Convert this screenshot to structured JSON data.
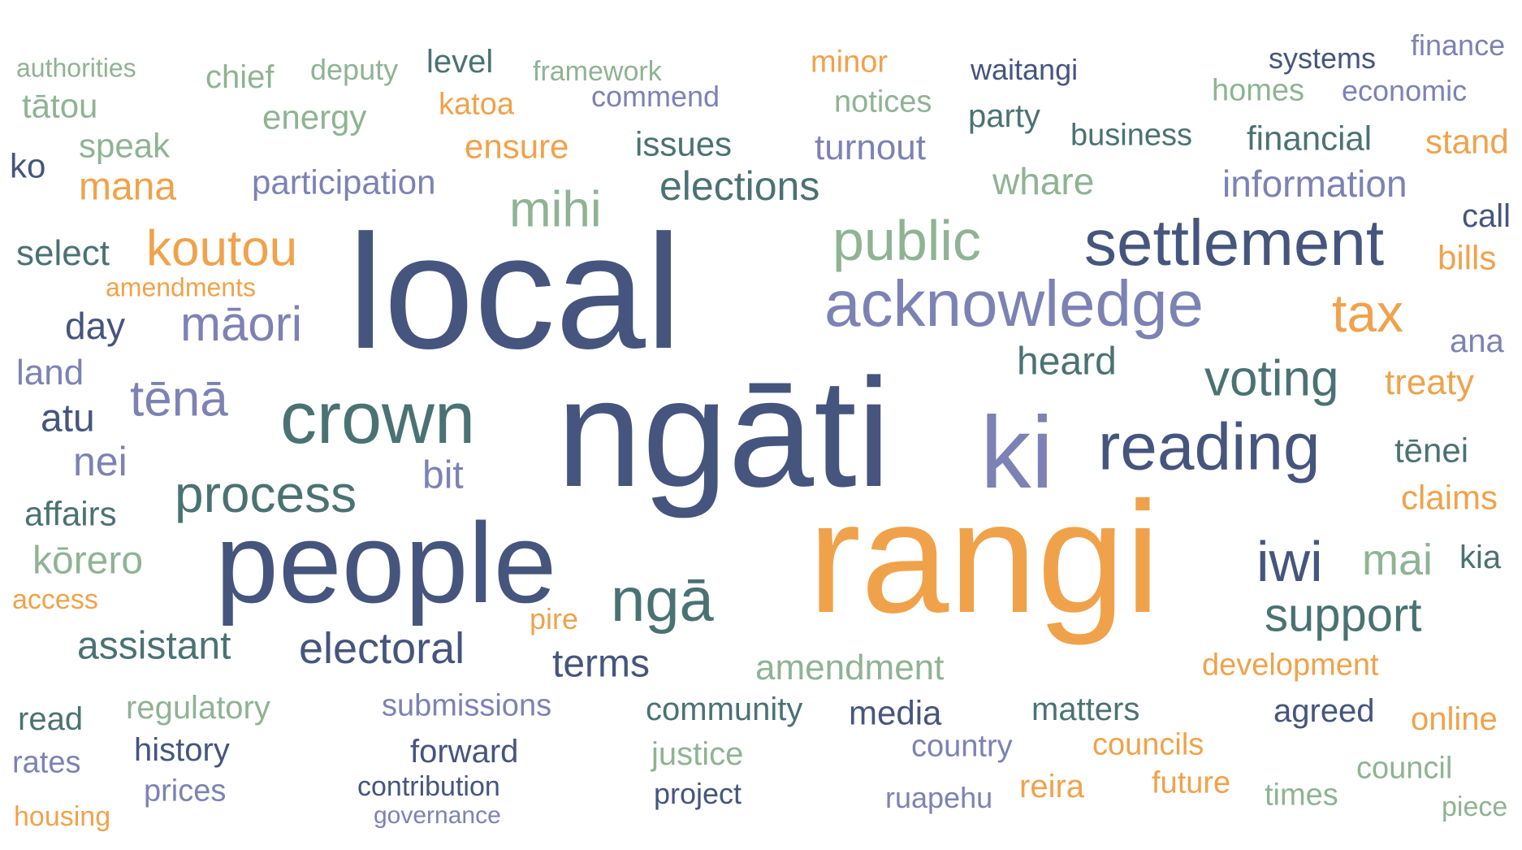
{
  "palette": {
    "navy": "#46557d",
    "teal": "#4b7272",
    "sage": "#8fb394",
    "lavender": "#7d82b4",
    "orange": "#f0a24b"
  },
  "words": [
    {
      "text": "local",
      "color": "navy"
    },
    {
      "text": "ngāti",
      "color": "navy"
    },
    {
      "text": "rangi",
      "color": "orange"
    },
    {
      "text": "people",
      "color": "navy"
    },
    {
      "text": "ki",
      "color": "lavender"
    },
    {
      "text": "crown",
      "color": "teal"
    },
    {
      "text": "settlement",
      "color": "navy"
    },
    {
      "text": "acknowledge",
      "color": "lavender"
    },
    {
      "text": "reading",
      "color": "navy"
    },
    {
      "text": "public",
      "color": "sage"
    },
    {
      "text": "process",
      "color": "teal"
    },
    {
      "text": "ngā",
      "color": "teal"
    },
    {
      "text": "electoral",
      "color": "navy"
    },
    {
      "text": "koutou",
      "color": "orange"
    },
    {
      "text": "māori",
      "color": "lavender"
    },
    {
      "text": "voting",
      "color": "teal"
    },
    {
      "text": "tax",
      "color": "orange"
    },
    {
      "text": "iwi",
      "color": "navy"
    },
    {
      "text": "support",
      "color": "teal"
    },
    {
      "text": "mihi",
      "color": "sage"
    },
    {
      "text": "tēnā",
      "color": "lavender"
    },
    {
      "text": "mai",
      "color": "sage"
    },
    {
      "text": "elections",
      "color": "teal"
    },
    {
      "text": "heard",
      "color": "teal"
    },
    {
      "text": "assistant",
      "color": "teal"
    },
    {
      "text": "amendment",
      "color": "sage"
    },
    {
      "text": "terms",
      "color": "navy"
    },
    {
      "text": "information",
      "color": "lavender"
    },
    {
      "text": "whare",
      "color": "sage"
    },
    {
      "text": "kōrero",
      "color": "sage"
    },
    {
      "text": "nei",
      "color": "lavender"
    },
    {
      "text": "treaty",
      "color": "orange"
    },
    {
      "text": "tēnei",
      "color": "teal"
    },
    {
      "text": "mana",
      "color": "orange"
    },
    {
      "text": "turnout",
      "color": "lavender"
    },
    {
      "text": "participation",
      "color": "lavender"
    },
    {
      "text": "day",
      "color": "navy"
    },
    {
      "text": "select",
      "color": "teal"
    },
    {
      "text": "issues",
      "color": "teal"
    },
    {
      "text": "ensure",
      "color": "orange"
    },
    {
      "text": "financial",
      "color": "teal"
    },
    {
      "text": "business",
      "color": "teal"
    },
    {
      "text": "claims",
      "color": "orange"
    },
    {
      "text": "land",
      "color": "lavender"
    },
    {
      "text": "atu",
      "color": "navy"
    },
    {
      "text": "bit",
      "color": "lavender"
    },
    {
      "text": "affairs",
      "color": "teal"
    },
    {
      "text": "speak",
      "color": "sage"
    },
    {
      "text": "stand",
      "color": "orange"
    },
    {
      "text": "bills",
      "color": "orange"
    },
    {
      "text": "matters",
      "color": "teal"
    },
    {
      "text": "community",
      "color": "teal"
    },
    {
      "text": "media",
      "color": "navy"
    },
    {
      "text": "development",
      "color": "orange"
    },
    {
      "text": "agreed",
      "color": "navy"
    },
    {
      "text": "online",
      "color": "orange"
    },
    {
      "text": "forward",
      "color": "navy"
    },
    {
      "text": "history",
      "color": "navy"
    },
    {
      "text": "regulatory",
      "color": "sage"
    },
    {
      "text": "submissions",
      "color": "lavender"
    },
    {
      "text": "justice",
      "color": "sage"
    },
    {
      "text": "councils",
      "color": "orange"
    },
    {
      "text": "country",
      "color": "lavender"
    },
    {
      "text": "council",
      "color": "sage"
    },
    {
      "text": "read",
      "color": "teal"
    },
    {
      "text": "rates",
      "color": "lavender"
    },
    {
      "text": "future",
      "color": "orange"
    },
    {
      "text": "reira",
      "color": "orange"
    },
    {
      "text": "project",
      "color": "navy"
    },
    {
      "text": "times",
      "color": "sage"
    },
    {
      "text": "prices",
      "color": "lavender"
    },
    {
      "text": "contribution",
      "color": "navy"
    },
    {
      "text": "ruapehu",
      "color": "lavender"
    },
    {
      "text": "housing",
      "color": "orange"
    },
    {
      "text": "governance",
      "color": "lavender"
    },
    {
      "text": "piece",
      "color": "sage"
    },
    {
      "text": "pire",
      "color": "orange"
    },
    {
      "text": "kia",
      "color": "teal"
    },
    {
      "text": "ana",
      "color": "lavender"
    },
    {
      "text": "call",
      "color": "navy"
    },
    {
      "text": "access",
      "color": "orange"
    },
    {
      "text": "ko",
      "color": "navy"
    },
    {
      "text": "energy",
      "color": "sage"
    },
    {
      "text": "tātou",
      "color": "sage"
    },
    {
      "text": "chief",
      "color": "sage"
    },
    {
      "text": "deputy",
      "color": "sage"
    },
    {
      "text": "level",
      "color": "teal"
    },
    {
      "text": "framework",
      "color": "sage"
    },
    {
      "text": "commend",
      "color": "lavender"
    },
    {
      "text": "katoa",
      "color": "orange"
    },
    {
      "text": "minor",
      "color": "orange"
    },
    {
      "text": "notices",
      "color": "sage"
    },
    {
      "text": "waitangi",
      "color": "navy"
    },
    {
      "text": "party",
      "color": "teal"
    },
    {
      "text": "systems",
      "color": "navy"
    },
    {
      "text": "homes",
      "color": "sage"
    },
    {
      "text": "finance",
      "color": "lavender"
    },
    {
      "text": "economic",
      "color": "lavender"
    },
    {
      "text": "authorities",
      "color": "sage"
    },
    {
      "text": "amendments",
      "color": "orange"
    }
  ]
}
